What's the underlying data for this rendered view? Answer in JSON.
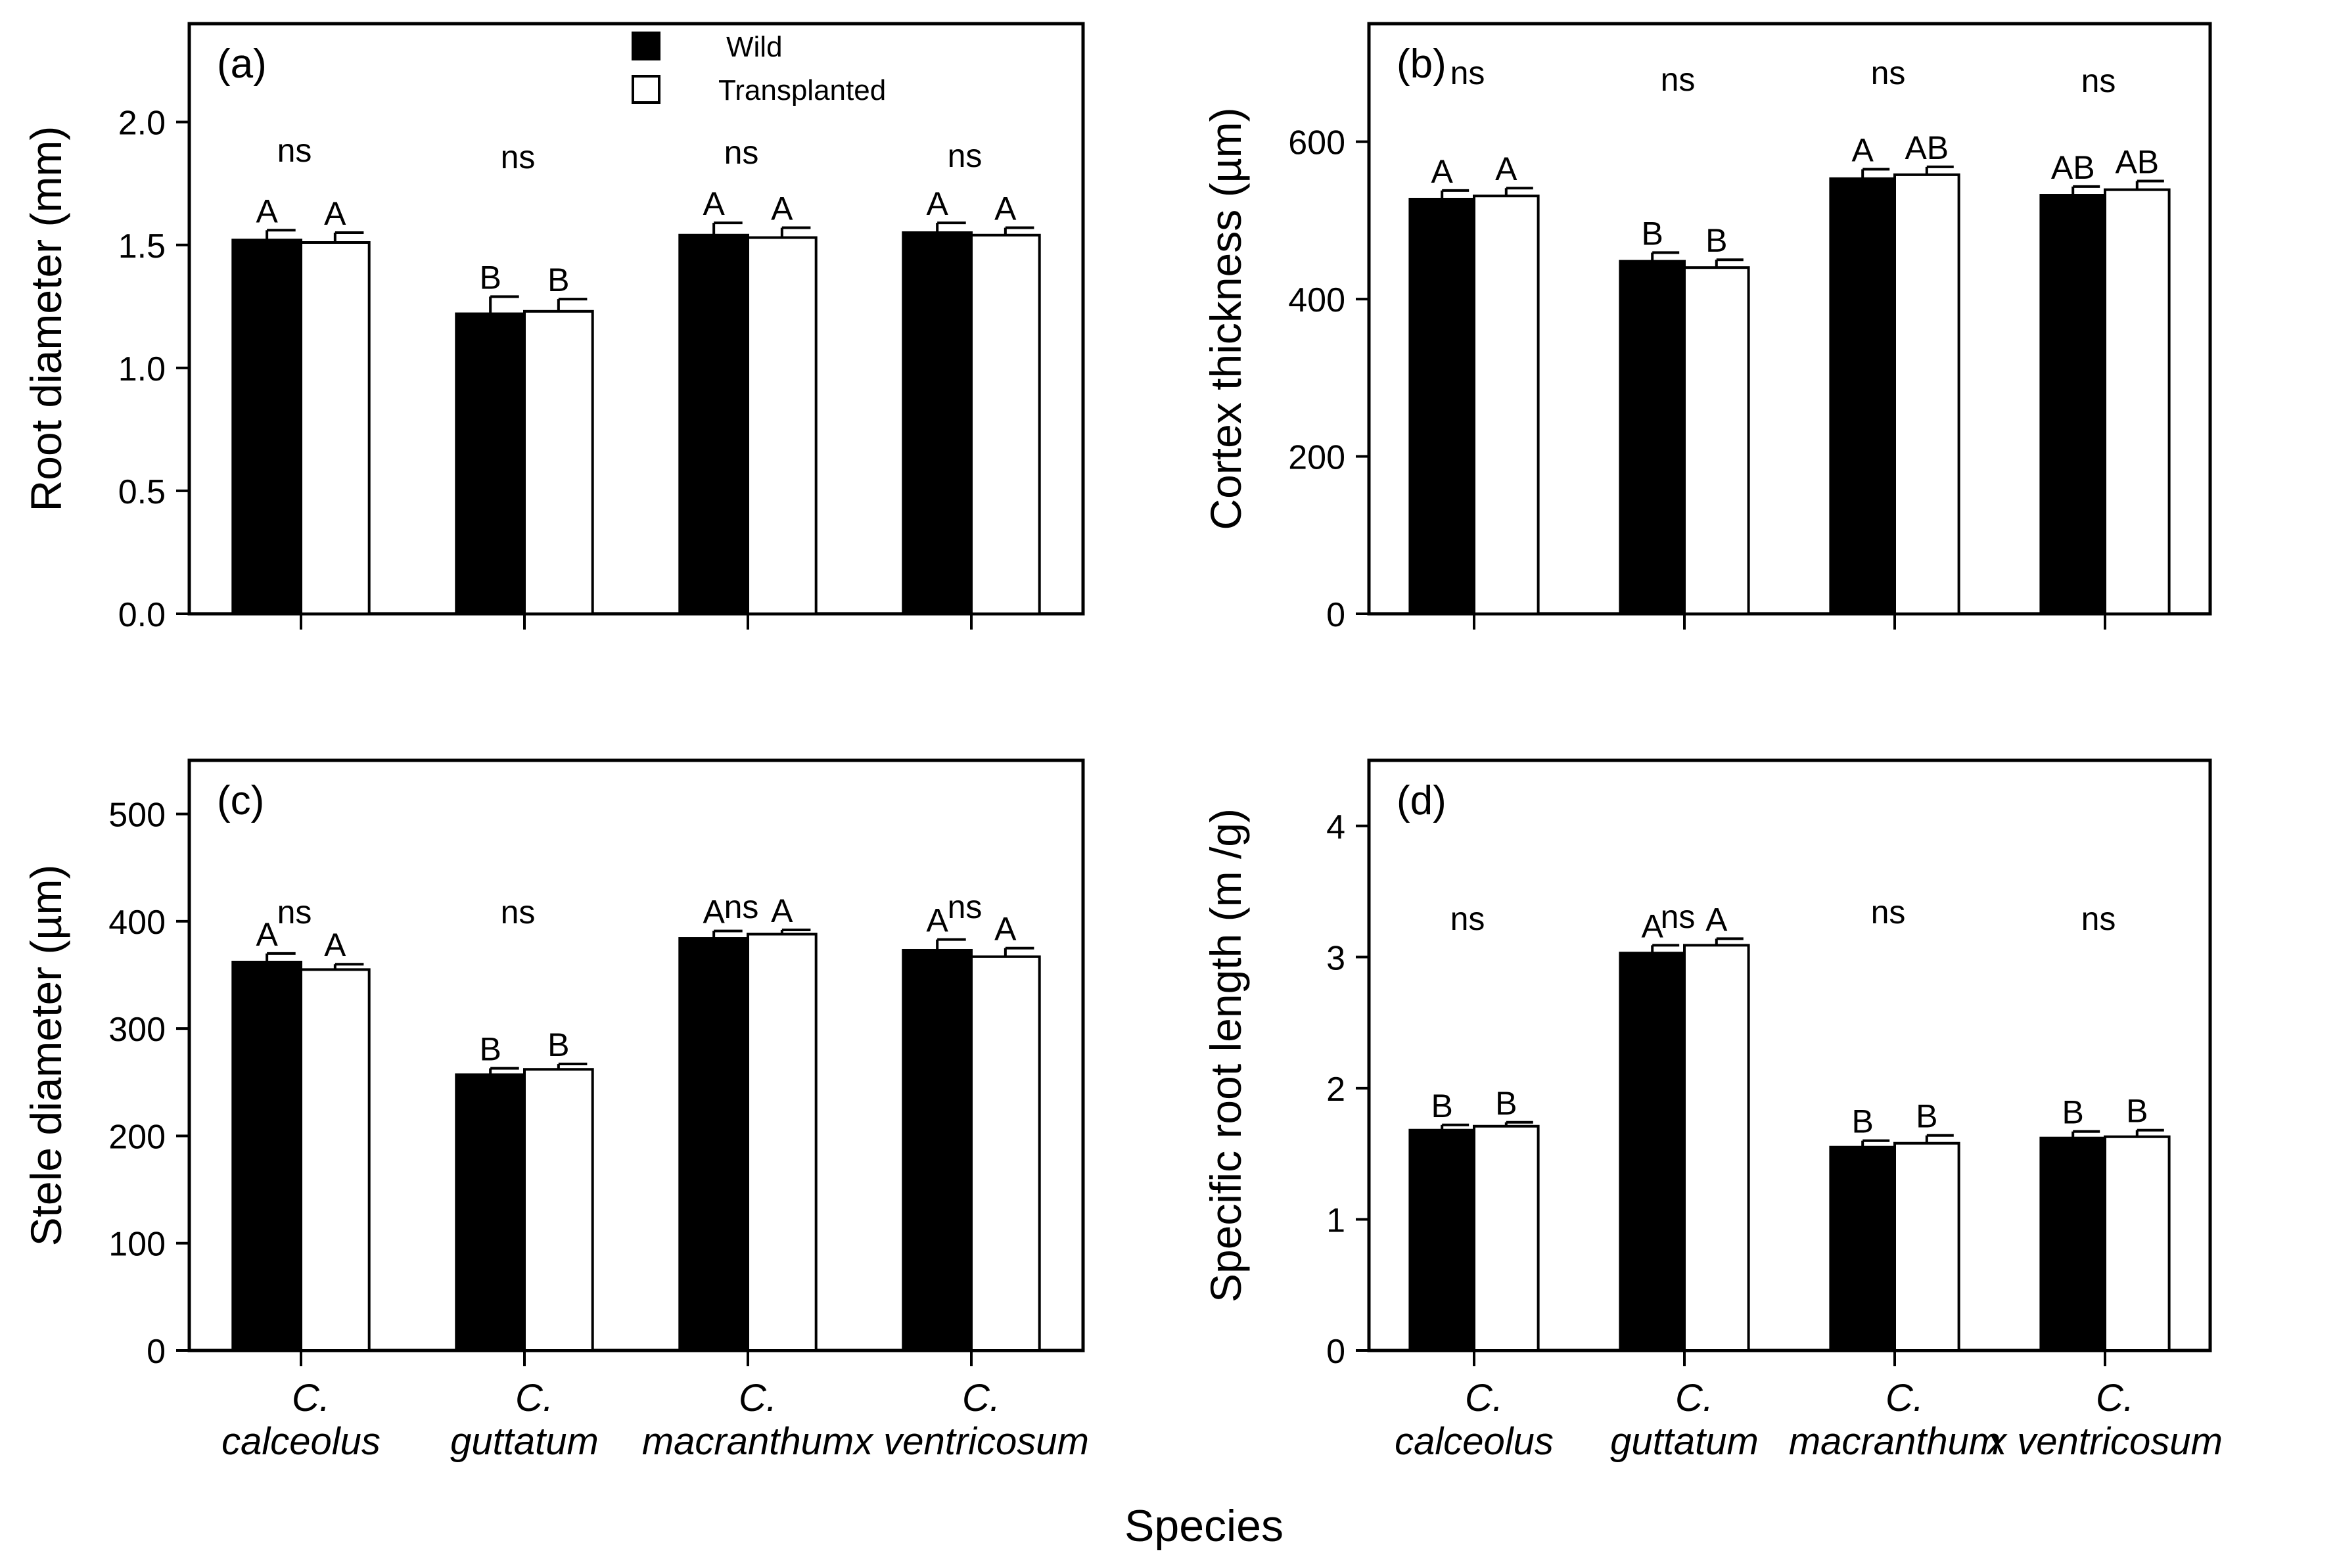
{
  "figure": {
    "shared_xlabel": "Species",
    "legend": [
      {
        "name": "Wild",
        "color": "#000000"
      },
      {
        "name": "Transplanted",
        "color": "#ffffff"
      }
    ],
    "categories": [
      {
        "line1": "C.",
        "line2": "calceolus"
      },
      {
        "line1": "C.",
        "line2": "guttatum"
      },
      {
        "line1": "C.",
        "line2": "macranthum"
      },
      {
        "line1": "C.",
        "line2": "x ventricosum"
      }
    ]
  },
  "chart_data": [
    {
      "type": "bar",
      "panel_label": "(a)",
      "ylabel": "Root diameter (mm)",
      "ylim": [
        0,
        2.4
      ],
      "yticks": [
        "0.0",
        "0.5",
        "1.0",
        "1.5",
        "2.0"
      ],
      "ytick_values": [
        0,
        0.5,
        1.0,
        1.5,
        2.0
      ],
      "categories": [
        "C. calceolus",
        "C. guttatum",
        "C. macranthum",
        "C. x ventricosum"
      ],
      "series": [
        {
          "name": "Wild",
          "values": [
            1.52,
            1.22,
            1.54,
            1.55
          ],
          "errors": [
            0.04,
            0.07,
            0.05,
            0.04
          ],
          "letters": [
            "A",
            "B",
            "A",
            "A"
          ]
        },
        {
          "name": "Transplanted",
          "values": [
            1.51,
            1.23,
            1.53,
            1.54
          ],
          "errors": [
            0.04,
            0.05,
            0.04,
            0.03
          ],
          "letters": [
            "A",
            "B",
            "A",
            "A"
          ]
        }
      ],
      "significance": [
        "ns",
        "ns",
        "ns",
        "ns"
      ],
      "show_legend": true
    },
    {
      "type": "bar",
      "panel_label": "(b)",
      "ylabel": "Cortex thickness (µm)",
      "ylim": [
        0,
        750
      ],
      "yticks": [
        "0",
        "200",
        "400",
        "600"
      ],
      "ytick_values": [
        0,
        200,
        400,
        600
      ],
      "categories": [
        "C. calceolus",
        "C. guttatum",
        "C. macranthum",
        "C. x ventricosum"
      ],
      "series": [
        {
          "name": "Wild",
          "values": [
            527,
            448,
            553,
            532
          ],
          "errors": [
            11,
            11,
            12,
            11
          ],
          "letters": [
            "A",
            "B",
            "A",
            "AB"
          ]
        },
        {
          "name": "Transplanted",
          "values": [
            531,
            440,
            558,
            539
          ],
          "errors": [
            10,
            10,
            10,
            11
          ],
          "letters": [
            "A",
            "B",
            "AB",
            "AB"
          ]
        }
      ],
      "significance": [
        "ns",
        "ns",
        "ns",
        "ns"
      ],
      "show_legend": false
    },
    {
      "type": "bar",
      "panel_label": "(c)",
      "ylabel": "Stele diameter (µm)",
      "ylim": [
        0,
        550
      ],
      "yticks": [
        "0",
        "100",
        "200",
        "300",
        "400",
        "500"
      ],
      "ytick_values": [
        0,
        100,
        200,
        300,
        400,
        500
      ],
      "categories": [
        "C. calceolus",
        "C. guttatum",
        "C. macranthum",
        "C. x ventricosum"
      ],
      "series": [
        {
          "name": "Wild",
          "values": [
            362,
            257,
            384,
            373
          ],
          "errors": [
            8,
            6,
            7,
            10
          ],
          "letters": [
            "A",
            "B",
            "A",
            "A"
          ]
        },
        {
          "name": "Transplanted",
          "values": [
            355,
            262,
            388,
            367
          ],
          "errors": [
            5,
            5,
            4,
            8
          ],
          "letters": [
            "A",
            "B",
            "A",
            "A"
          ]
        }
      ],
      "significance": [
        "ns",
        "ns",
        "ns",
        "ns"
      ],
      "show_legend": false
    },
    {
      "type": "bar",
      "panel_label": "(d)",
      "ylabel": "Specific root length (m /g)",
      "ylim": [
        0,
        4.5
      ],
      "yticks": [
        "0",
        "1",
        "2",
        "3",
        "4"
      ],
      "ytick_values": [
        0,
        1,
        2,
        3,
        4
      ],
      "categories": [
        "C. calceolus",
        "C. guttatum",
        "C. macranthum",
        "C. x ventricosum"
      ],
      "series": [
        {
          "name": "Wild",
          "values": [
            1.68,
            3.03,
            1.55,
            1.62
          ],
          "errors": [
            0.04,
            0.06,
            0.05,
            0.05
          ],
          "letters": [
            "B",
            "A",
            "B",
            "B"
          ]
        },
        {
          "name": "Transplanted",
          "values": [
            1.71,
            3.09,
            1.58,
            1.63
          ],
          "errors": [
            0.03,
            0.05,
            0.06,
            0.05
          ],
          "letters": [
            "B",
            "A",
            "B",
            "B"
          ]
        }
      ],
      "significance": [
        "ns",
        "ns",
        "ns",
        "ns"
      ],
      "show_legend": false
    }
  ]
}
